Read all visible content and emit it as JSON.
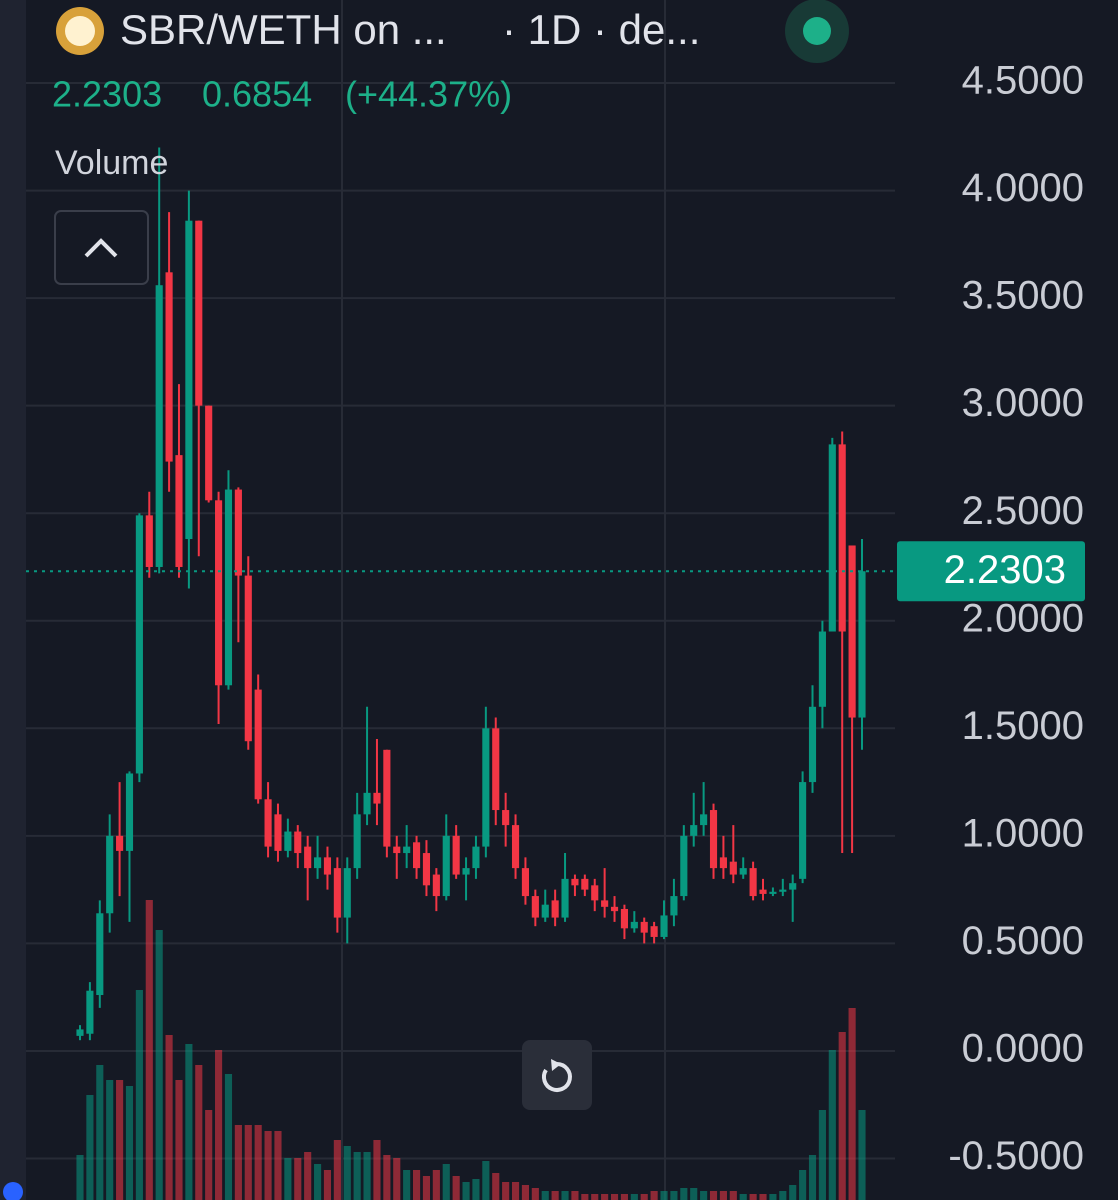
{
  "chart_data": {
    "type": "candlestick",
    "title": "SBR/WETH on ...",
    "interval": "· 1D · de...",
    "last_price": 2.2303,
    "change": 0.6854,
    "change_label": "(+44.37%)",
    "volume_label": "Volume",
    "up_color": "#089981",
    "down_color": "#f23645",
    "ylim": [
      -0.693,
      4.886
    ],
    "yticks": [
      {
        "value": -0.5,
        "label": "-0.5000"
      },
      {
        "value": 0,
        "label": "0.0000"
      },
      {
        "value": 0.5,
        "label": "0.5000"
      },
      {
        "value": 1,
        "label": "1.0000"
      },
      {
        "value": 1.5,
        "label": "1.5000"
      },
      {
        "value": 2,
        "label": "2.0000"
      },
      {
        "value": 2.5,
        "label": "2.5000"
      },
      {
        "value": 3,
        "label": "3.0000"
      },
      {
        "value": 3.5,
        "label": "3.5000"
      },
      {
        "value": 4,
        "label": "4.0000"
      },
      {
        "value": 4.5,
        "label": "4.5000"
      }
    ],
    "grid": true,
    "open": [
      0.07,
      0.08,
      0.26,
      0.64,
      1.0,
      0.93,
      1.29,
      2.49,
      2.25,
      3.62,
      2.77,
      2.38,
      3.86,
      3.0,
      2.56,
      1.7,
      2.61,
      2.21,
      1.68,
      1.17,
      1.1,
      0.93,
      1.02,
      0.95,
      0.85,
      0.9,
      0.85,
      0.62,
      0.85,
      1.1,
      1.2,
      1.4,
      0.95,
      0.92,
      0.97,
      0.92,
      0.82,
      0.72,
      1.0,
      0.82,
      0.85,
      0.95,
      1.5,
      1.12,
      1.05,
      0.85,
      0.72,
      0.62,
      0.7,
      0.62,
      0.8,
      0.8,
      0.77,
      0.7,
      0.67,
      0.66,
      0.57,
      0.6,
      0.58,
      0.53,
      0.63,
      0.72,
      1.0,
      1.05,
      1.12,
      0.9,
      0.88,
      0.82,
      0.85,
      0.75,
      0.73,
      0.74,
      0.75,
      0.8,
      1.25,
      1.6,
      1.95,
      2.82,
      2.35,
      1.55
    ],
    "high": [
      0.12,
      0.32,
      0.7,
      1.1,
      1.25,
      1.3,
      2.5,
      2.6,
      4.2,
      3.9,
      3.1,
      4.0,
      3.86,
      3.0,
      2.6,
      2.7,
      2.62,
      2.3,
      1.75,
      1.25,
      1.15,
      1.08,
      1.05,
      1.0,
      1.0,
      0.95,
      0.9,
      0.9,
      1.2,
      1.6,
      1.45,
      1.4,
      1.0,
      1.05,
      1.0,
      0.98,
      0.85,
      1.1,
      1.05,
      0.9,
      1.0,
      1.6,
      1.55,
      1.2,
      1.1,
      0.9,
      0.75,
      0.75,
      0.75,
      0.92,
      0.82,
      0.82,
      0.8,
      0.85,
      0.72,
      0.68,
      0.65,
      0.62,
      0.6,
      0.7,
      0.8,
      1.05,
      1.2,
      1.25,
      1.15,
      1.0,
      1.05,
      0.9,
      0.88,
      0.8,
      0.76,
      0.8,
      0.82,
      1.3,
      1.7,
      2.0,
      2.85,
      2.88,
      2.35,
      2.38
    ],
    "low": [
      0.05,
      0.05,
      0.2,
      0.55,
      0.72,
      0.6,
      1.25,
      2.2,
      2.22,
      2.6,
      2.2,
      2.15,
      2.3,
      2.55,
      1.52,
      1.68,
      1.9,
      1.4,
      1.15,
      0.9,
      0.88,
      0.9,
      0.85,
      0.7,
      0.8,
      0.75,
      0.55,
      0.5,
      0.8,
      1.05,
      1.05,
      0.9,
      0.8,
      0.85,
      0.8,
      0.72,
      0.65,
      0.7,
      0.8,
      0.7,
      0.8,
      0.9,
      1.05,
      0.95,
      0.8,
      0.68,
      0.58,
      0.6,
      0.58,
      0.6,
      0.72,
      0.72,
      0.65,
      0.62,
      0.6,
      0.52,
      0.55,
      0.5,
      0.5,
      0.52,
      0.58,
      0.7,
      0.95,
      1.0,
      0.8,
      0.8,
      0.78,
      0.8,
      0.7,
      0.7,
      0.72,
      0.72,
      0.6,
      0.78,
      1.2,
      1.5,
      1.95,
      0.92,
      0.92,
      1.4
    ],
    "close": [
      0.1,
      0.28,
      0.64,
      1.0,
      0.93,
      1.29,
      2.49,
      2.25,
      3.56,
      2.74,
      2.25,
      3.86,
      3.0,
      2.56,
      1.7,
      2.61,
      2.21,
      1.44,
      1.17,
      0.95,
      0.93,
      1.02,
      0.92,
      0.85,
      0.9,
      0.82,
      0.62,
      0.85,
      1.1,
      1.2,
      1.15,
      0.95,
      0.92,
      0.95,
      0.85,
      0.77,
      0.72,
      1.0,
      0.82,
      0.85,
      0.95,
      1.5,
      1.12,
      1.05,
      0.85,
      0.72,
      0.62,
      0.68,
      0.62,
      0.8,
      0.77,
      0.75,
      0.7,
      0.67,
      0.65,
      0.57,
      0.6,
      0.55,
      0.53,
      0.63,
      0.72,
      1.0,
      1.05,
      1.1,
      0.85,
      0.85,
      0.82,
      0.85,
      0.72,
      0.73,
      0.74,
      0.75,
      0.78,
      1.25,
      1.6,
      1.95,
      2.82,
      1.95,
      1.55,
      2.2303
    ],
    "volume": [
      15,
      35,
      45,
      40,
      40,
      38,
      70,
      100,
      90,
      55,
      40,
      52,
      45,
      30,
      50,
      42,
      25,
      25,
      25,
      23,
      23,
      14,
      14,
      16,
      12,
      10,
      20,
      18,
      16,
      16,
      20,
      15,
      14,
      10,
      10,
      8,
      10,
      12,
      8,
      6,
      7,
      13,
      9,
      6,
      6,
      5,
      4,
      3,
      3,
      3,
      3,
      2,
      2,
      2,
      2,
      2,
      2,
      2,
      3,
      3,
      3,
      4,
      4,
      3,
      3,
      3,
      3,
      2,
      2,
      2,
      2,
      3,
      5,
      10,
      15,
      30,
      50,
      56,
      64,
      30
    ]
  }
}
